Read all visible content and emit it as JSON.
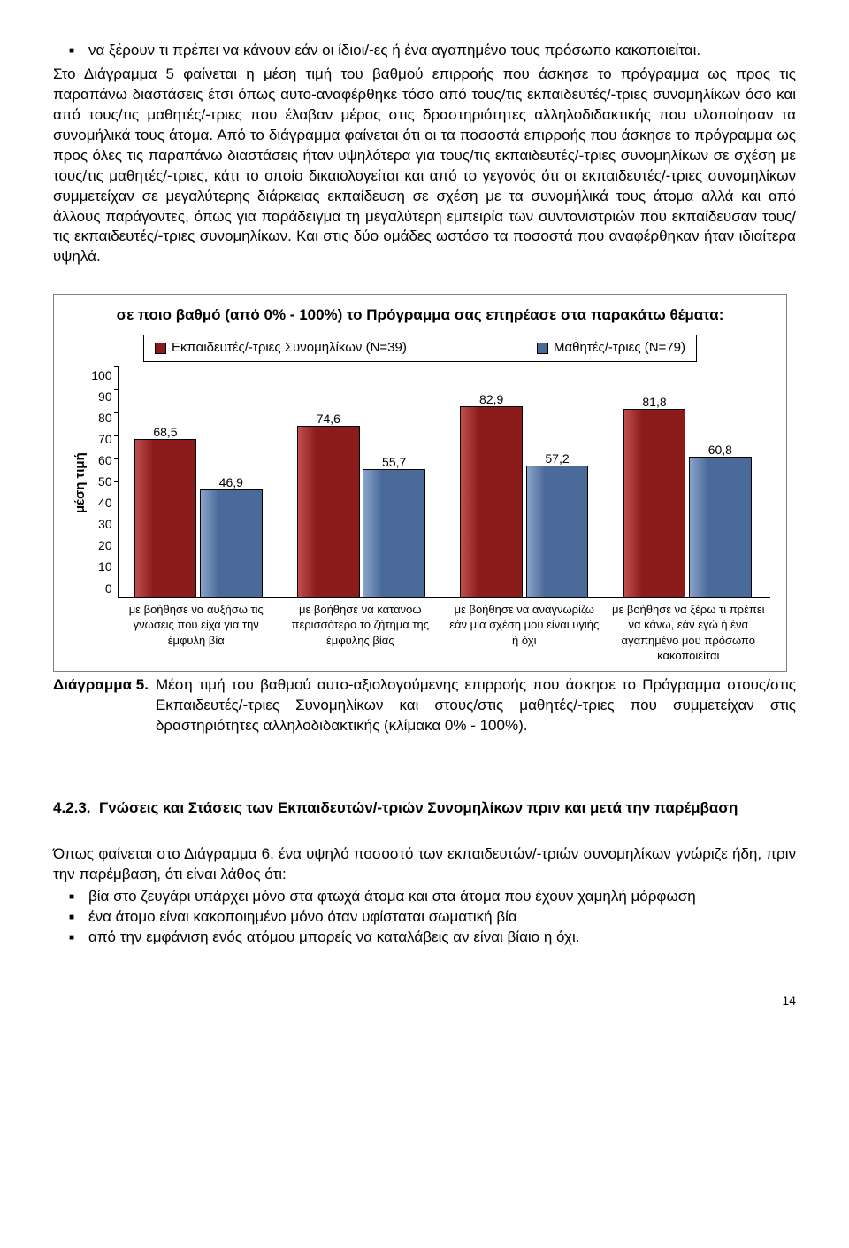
{
  "top_bullet": "να ξέρουν τι πρέπει να κάνουν εάν οι ίδιοι/-ες ή ένα αγαπημένο τους πρόσωπο κακοποιείται.",
  "para1": "Στο Διάγραμμα 5 φαίνεται η μέση τιμή του βαθμού επιρροής που άσκησε το πρόγραμμα ως προς τις παραπάνω διαστάσεις έτσι όπως αυτο-αναφέρθηκε τόσο από τους/τις εκπαιδευτές/-τριες συνομηλίκων όσο και από τους/τις μαθητές/-τριες που έλαβαν μέρος στις δραστηριότητες αλληλοδιδακτικής που υλοποίησαν τα συνομήλικά τους άτομα. Από το διάγραμμα φαίνεται ότι οι τα ποσοστά επιρροής που άσκησε το πρόγραμμα ως προς όλες τις παραπάνω διαστάσεις ήταν υψηλότερα για τους/τις εκπαιδευτές/-τριες συνομηλίκων σε σχέση με τους/τις μαθητές/-τριες, κάτι το οποίο δικαιολογείται και από το γεγονός ότι οι εκπαιδευτές/-τριες συνομηλίκων συμμετείχαν σε μεγαλύτερης διάρκειας εκπαίδευση σε σχέση με τα συνομήλικά τους άτομα αλλά και από άλλους παράγοντες, όπως για παράδειγμα τη μεγαλύτερη εμπειρία των συντονιστριών που εκπαίδευσαν τους/τις εκπαιδευτές/-τριες συνομηλίκων. Και στις δύο ομάδες ωστόσο τα ποσοστά που αναφέρθηκαν ήταν ιδιαίτερα υψηλά.",
  "chart": {
    "title": "σε ποιο βαθμό (από 0% - 100%) το Πρόγραμμα σας επηρέασε στα παρακάτω θέματα:",
    "legend_a": "Εκπαιδευτές/-τριες Συνομηλίκων (Ν=39)",
    "legend_b": "Μαθητές/-τριες (Ν=79)",
    "color_a": "#8b1a1a",
    "color_a_hl": "#c14f4f",
    "color_b": "#4a6a9a",
    "color_b_hl": "#8aa4c8",
    "ylabel": "μέση τιμή",
    "ymax": 100,
    "ytick_step": 10,
    "categories": [
      {
        "label": "με βοήθησε να αυξήσω τις γνώσεις που είχα για την έμφυλη βία",
        "a": 68.5,
        "b": 46.9,
        "al": "68,5",
        "bl": "46,9"
      },
      {
        "label": "με βοήθησε να κατανοώ περισσότερο το ζήτημα της έμφυλης βίας",
        "a": 74.6,
        "b": 55.7,
        "al": "74,6",
        "bl": "55,7"
      },
      {
        "label": "με βοήθησε να αναγνωρίζω εάν μια σχέση μου είναι υγιής ή όχι",
        "a": 82.9,
        "b": 57.2,
        "al": "82,9",
        "bl": "57,2"
      },
      {
        "label": "με βοήθησε να ξέρω τι πρέπει να κάνω, εάν εγώ ή ένα αγαπημένο μου πρόσωπο κακοποιείται",
        "a": 81.8,
        "b": 60.8,
        "al": "81,8",
        "bl": "60,8"
      }
    ]
  },
  "caption_lead": "Διάγραμμα 5.",
  "caption_body": "Μέση τιμή του βαθμού αυτο-αξιολογούμενης επιρροής που άσκησε το Πρόγραμμα στους/στις Εκπαιδευτές/-τριες Συνομηλίκων και στους/στις μαθητές/-τριες που συμμετείχαν στις δραστηριότητες αλληλοδιδακτικής (κλίμακα 0% - 100%).",
  "section_num": "4.2.3.",
  "section_title": "Γνώσεις και Στάσεις των Εκπαιδευτών/-τριών Συνομηλίκων πριν και μετά την παρέμβαση",
  "para2": "Όπως φαίνεται στο Διάγραμμα 6, ένα υψηλό ποσοστό των εκπαιδευτών/-τριών συνομηλίκων γνώριζε ήδη, πριν την παρέμβαση, ότι είναι λάθος ότι:",
  "bottom_bullets": [
    "βία στο ζευγάρι υπάρχει μόνο στα φτωχά άτομα και στα άτομα που έχουν χαμηλή μόρφωση",
    "ένα άτομο είναι κακοποιημένο μόνο όταν υφίσταται σωματική βία",
    "από την εμφάνιση ενός ατόμου μπορείς να καταλάβεις αν είναι βίαιο η όχι."
  ],
  "page_number": "14"
}
